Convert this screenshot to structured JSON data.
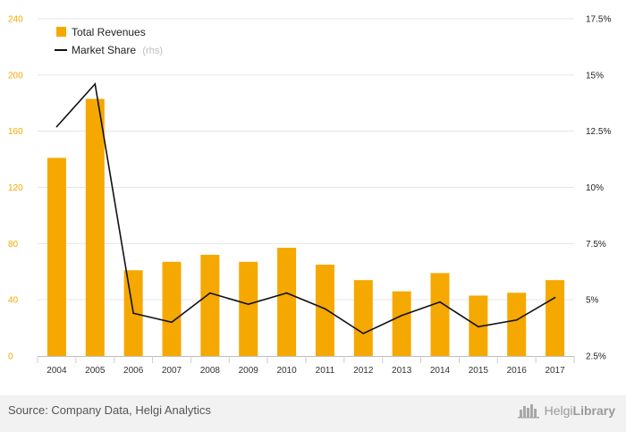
{
  "chart_data": {
    "type": "bar",
    "categories": [
      "2004",
      "2005",
      "2006",
      "2007",
      "2008",
      "2009",
      "2010",
      "2011",
      "2012",
      "2013",
      "2014",
      "2015",
      "2016",
      "2017"
    ],
    "series": [
      {
        "name": "Total Revenues",
        "type": "bar",
        "axis": "left",
        "color": "#f5a800",
        "values": [
          141,
          183,
          61,
          67,
          72,
          67,
          77,
          65,
          54,
          46,
          59,
          43,
          45,
          54
        ]
      },
      {
        "name": "Market Share",
        "name_suffix": "(rhs)",
        "type": "line",
        "axis": "right",
        "color": "#111111",
        "values": [
          12.7,
          14.6,
          4.4,
          4.0,
          5.3,
          4.8,
          5.3,
          4.6,
          3.5,
          4.3,
          4.9,
          3.8,
          4.1,
          5.1
        ]
      }
    ],
    "y_left": {
      "min": 0,
      "max": 240,
      "ticks": [
        "0",
        "40",
        "80",
        "120",
        "160",
        "200",
        "240"
      ]
    },
    "y_right": {
      "min": 2.5,
      "max": 17.5,
      "ticks": [
        "2.5%",
        "5%",
        "7.5%",
        "10%",
        "12.5%",
        "15%",
        "17.5%"
      ]
    },
    "grid": true,
    "legend_position": "top-left"
  },
  "footer": {
    "source": "Source: Company Data, Helgi Analytics",
    "brand_light": "Helgi",
    "brand_bold": "Library"
  }
}
